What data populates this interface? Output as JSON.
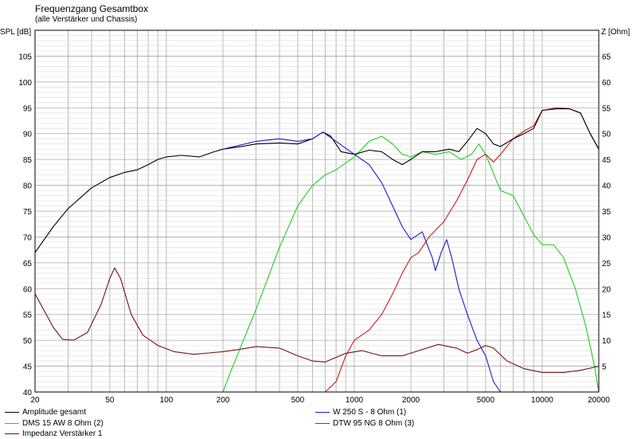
{
  "header": {
    "title": "Frequenzgang Gesamtbox",
    "subtitle": "(alle Verstärker und Chassis)",
    "ylabel_left": "SPL [dB]",
    "ylabel_right": "Z [Ohm]"
  },
  "legend": {
    "items": [
      {
        "label": "Amplitude gesamt",
        "color": "#000000"
      },
      {
        "label": "DMS 15 AW 8 Ohm (2)",
        "color": "#22cc22"
      },
      {
        "label": "Impedanz Verstärker 1",
        "color": "#7a1010"
      },
      {
        "label": "W 250 S - 8 Ohm  (1)",
        "color": "#1a1acc"
      },
      {
        "label": "DTW 95 NG 8 Ohm (3)",
        "color": "#cc1a1a"
      }
    ]
  },
  "chart_data": {
    "type": "line",
    "x_scale": "log",
    "xlim": [
      20,
      20000
    ],
    "ylim_left": [
      40,
      110
    ],
    "ylim_right": [
      0,
      70
    ],
    "grid": true,
    "x_tick_labels": [
      {
        "x": 20,
        "label": "20"
      },
      {
        "x": 50,
        "label": "50"
      },
      {
        "x": 100,
        "label": "100"
      },
      {
        "x": 200,
        "label": "200"
      },
      {
        "x": 500,
        "label": "500"
      },
      {
        "x": 1000,
        "label": "1000"
      },
      {
        "x": 2000,
        "label": "2000"
      },
      {
        "x": 5000,
        "label": "5000"
      },
      {
        "x": 10000,
        "label": "10000"
      },
      {
        "x": 20000,
        "label": "20000"
      }
    ],
    "y_left_ticks": [
      {
        "y": 40,
        "label": "40"
      },
      {
        "y": 45,
        "label": "45"
      },
      {
        "y": 50,
        "label": "50"
      },
      {
        "y": 55,
        "label": "55"
      },
      {
        "y": 60,
        "label": "60"
      },
      {
        "y": 65,
        "label": "65"
      },
      {
        "y": 70,
        "label": "70"
      },
      {
        "y": 75,
        "label": "75"
      },
      {
        "y": 80,
        "label": "80"
      },
      {
        "y": 85,
        "label": "85"
      },
      {
        "y": 90,
        "label": "90"
      },
      {
        "y": 95,
        "label": "95"
      },
      {
        "y": 100,
        "label": "100"
      },
      {
        "y": 105,
        "label": "105"
      }
    ],
    "y_right_ticks": [
      {
        "y": 5,
        "label": "5"
      },
      {
        "y": 10,
        "label": "10"
      },
      {
        "y": 15,
        "label": "15"
      },
      {
        "y": 20,
        "label": "20"
      },
      {
        "y": 25,
        "label": "25"
      },
      {
        "y": 30,
        "label": "30"
      },
      {
        "y": 35,
        "label": "35"
      },
      {
        "y": 40,
        "label": "40"
      },
      {
        "y": 45,
        "label": "45"
      },
      {
        "y": 50,
        "label": "50"
      },
      {
        "y": 55,
        "label": "55"
      },
      {
        "y": 60,
        "label": "60"
      },
      {
        "y": 65,
        "label": "65"
      }
    ],
    "series": [
      {
        "name": "Amplitude gesamt",
        "axis": "left",
        "color": "#000000",
        "points": [
          [
            20,
            67
          ],
          [
            25,
            72
          ],
          [
            30,
            75.5
          ],
          [
            40,
            79.5
          ],
          [
            50,
            81.5
          ],
          [
            60,
            82.5
          ],
          [
            70,
            83
          ],
          [
            80,
            84
          ],
          [
            90,
            85
          ],
          [
            100,
            85.5
          ],
          [
            120,
            85.8
          ],
          [
            150,
            85.5
          ],
          [
            180,
            86.5
          ],
          [
            200,
            87
          ],
          [
            250,
            87.5
          ],
          [
            300,
            88
          ],
          [
            400,
            88.2
          ],
          [
            500,
            88
          ],
          [
            600,
            89
          ],
          [
            680,
            90.3
          ],
          [
            750,
            89.5
          ],
          [
            850,
            86.5
          ],
          [
            1000,
            86
          ],
          [
            1200,
            86.8
          ],
          [
            1400,
            86.5
          ],
          [
            1600,
            85
          ],
          [
            1800,
            84
          ],
          [
            2000,
            85
          ],
          [
            2300,
            86.5
          ],
          [
            2700,
            86.5
          ],
          [
            3200,
            87
          ],
          [
            3600,
            86.5
          ],
          [
            4000,
            88.5
          ],
          [
            4500,
            91
          ],
          [
            5000,
            90
          ],
          [
            5500,
            88
          ],
          [
            6000,
            87.5
          ],
          [
            7000,
            89
          ],
          [
            8000,
            90
          ],
          [
            9000,
            91
          ],
          [
            10000,
            94.5
          ],
          [
            12000,
            94.8
          ],
          [
            14000,
            94.8
          ],
          [
            16000,
            94
          ],
          [
            18000,
            90
          ],
          [
            20000,
            87
          ]
        ]
      },
      {
        "name": "DMS 15 AW 8 Ohm (2)",
        "axis": "left",
        "color": "#22cc22",
        "points": [
          [
            20,
            40
          ],
          [
            200,
            40
          ],
          [
            220,
            44
          ],
          [
            300,
            56
          ],
          [
            400,
            68
          ],
          [
            500,
            76
          ],
          [
            600,
            80
          ],
          [
            700,
            82
          ],
          [
            800,
            83
          ],
          [
            1000,
            85.5
          ],
          [
            1200,
            88.5
          ],
          [
            1400,
            89.5
          ],
          [
            1600,
            88
          ],
          [
            1800,
            86
          ],
          [
            2000,
            85.5
          ],
          [
            2300,
            86.5
          ],
          [
            2700,
            86
          ],
          [
            3200,
            86.5
          ],
          [
            3700,
            85
          ],
          [
            4200,
            86
          ],
          [
            4600,
            88
          ],
          [
            5000,
            86
          ],
          [
            6000,
            79
          ],
          [
            7000,
            78
          ],
          [
            8000,
            74
          ],
          [
            9000,
            70.5
          ],
          [
            10000,
            68.5
          ],
          [
            11500,
            68.5
          ],
          [
            13000,
            66
          ],
          [
            15000,
            60
          ],
          [
            17000,
            53
          ],
          [
            19000,
            45
          ],
          [
            20000,
            40
          ]
        ]
      },
      {
        "name": "W 250 S - 8 Ohm  (1)",
        "axis": "left",
        "color": "#1a1acc",
        "points": [
          [
            200,
            87
          ],
          [
            300,
            88.5
          ],
          [
            400,
            89
          ],
          [
            500,
            88.5
          ],
          [
            600,
            89
          ],
          [
            680,
            90.3
          ],
          [
            800,
            88.5
          ],
          [
            1000,
            86
          ],
          [
            1200,
            84
          ],
          [
            1400,
            80.5
          ],
          [
            1600,
            76
          ],
          [
            1800,
            72
          ],
          [
            2000,
            69.5
          ],
          [
            2300,
            71
          ],
          [
            2600,
            66
          ],
          [
            2700,
            63.5
          ],
          [
            2900,
            67
          ],
          [
            3100,
            69.5
          ],
          [
            3300,
            66
          ],
          [
            3600,
            60
          ],
          [
            4000,
            55
          ],
          [
            4500,
            50
          ],
          [
            5000,
            47
          ],
          [
            5500,
            42
          ],
          [
            6000,
            40
          ],
          [
            20000,
            40
          ]
        ]
      },
      {
        "name": "DTW 95 NG 8 Ohm (3)",
        "axis": "left",
        "color": "#cc1a1a",
        "points": [
          [
            200,
            40
          ],
          [
            700,
            40
          ],
          [
            800,
            42
          ],
          [
            900,
            47
          ],
          [
            1000,
            50
          ],
          [
            1200,
            52
          ],
          [
            1400,
            55
          ],
          [
            1600,
            59
          ],
          [
            1800,
            63
          ],
          [
            2000,
            66
          ],
          [
            2200,
            67
          ],
          [
            2500,
            70
          ],
          [
            3000,
            73
          ],
          [
            3500,
            77
          ],
          [
            4000,
            81
          ],
          [
            4500,
            85
          ],
          [
            5000,
            86
          ],
          [
            5500,
            84.5
          ],
          [
            6000,
            86
          ],
          [
            7000,
            89
          ],
          [
            8000,
            90.5
          ],
          [
            9000,
            91.5
          ],
          [
            10000,
            94.5
          ],
          [
            12000,
            95
          ],
          [
            14000,
            94.8
          ],
          [
            16000,
            94
          ],
          [
            18000,
            90
          ],
          [
            20000,
            87
          ]
        ]
      },
      {
        "name": "Impedanz Verstärker 1",
        "axis": "right",
        "color": "#7a1010",
        "points": [
          [
            20,
            19
          ],
          [
            25,
            12.5
          ],
          [
            28,
            10.2
          ],
          [
            32,
            10
          ],
          [
            38,
            11.5
          ],
          [
            45,
            17
          ],
          [
            50,
            22
          ],
          [
            53,
            24
          ],
          [
            57,
            22
          ],
          [
            65,
            15
          ],
          [
            75,
            11
          ],
          [
            90,
            9
          ],
          [
            110,
            7.8
          ],
          [
            140,
            7.3
          ],
          [
            200,
            7.8
          ],
          [
            250,
            8.3
          ],
          [
            300,
            8.8
          ],
          [
            400,
            8.5
          ],
          [
            500,
            7
          ],
          [
            600,
            6
          ],
          [
            700,
            5.8
          ],
          [
            900,
            7.5
          ],
          [
            1100,
            8
          ],
          [
            1400,
            7
          ],
          [
            1800,
            7
          ],
          [
            2200,
            8
          ],
          [
            2800,
            9.2
          ],
          [
            3500,
            8.5
          ],
          [
            4000,
            7.5
          ],
          [
            4500,
            8.2
          ],
          [
            5000,
            9
          ],
          [
            5500,
            8.5
          ],
          [
            6500,
            6
          ],
          [
            8000,
            4.5
          ],
          [
            10000,
            3.8
          ],
          [
            13000,
            3.8
          ],
          [
            16000,
            4.2
          ],
          [
            20000,
            5
          ]
        ]
      }
    ]
  }
}
